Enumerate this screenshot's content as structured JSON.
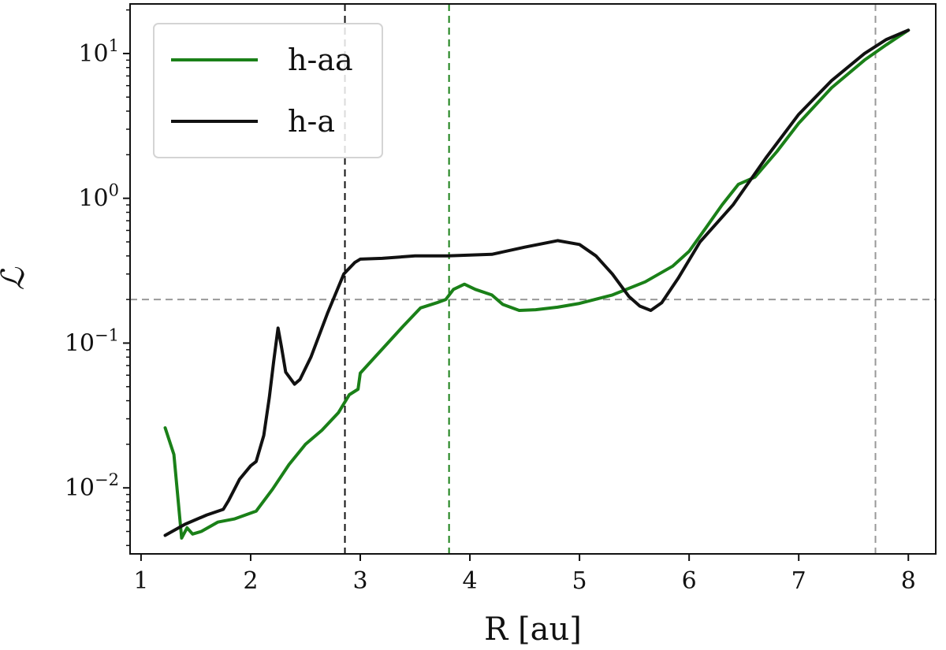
{
  "chart_data": {
    "type": "line",
    "title": "",
    "xlabel": "R [au]",
    "ylabel": "ℒ",
    "xlim": [
      0.9,
      8.25
    ],
    "ylim": [
      0.0035,
      22
    ],
    "yscale": "log",
    "grid": false,
    "legend_position": "top-left",
    "x_ticks": [
      1,
      2,
      3,
      4,
      5,
      6,
      7,
      8
    ],
    "x_tick_labels": [
      "1",
      "2",
      "3",
      "4",
      "5",
      "6",
      "7",
      "8"
    ],
    "y_ticks": [
      {
        "value": 0.01,
        "base": "10",
        "exp": "−2"
      },
      {
        "value": 0.1,
        "base": "10",
        "exp": "−1"
      },
      {
        "value": 1,
        "base": "10",
        "exp": "0"
      },
      {
        "value": 10,
        "base": "10",
        "exp": "1"
      }
    ],
    "series": [
      {
        "name": "h-aa",
        "color": "#1a8018",
        "points": [
          [
            1.22,
            0.026
          ],
          [
            1.3,
            0.017
          ],
          [
            1.37,
            0.0045
          ],
          [
            1.42,
            0.0053
          ],
          [
            1.47,
            0.0048
          ],
          [
            1.55,
            0.005
          ],
          [
            1.7,
            0.0058
          ],
          [
            1.85,
            0.0061
          ],
          [
            2.05,
            0.0069
          ],
          [
            2.2,
            0.0098
          ],
          [
            2.35,
            0.0145
          ],
          [
            2.5,
            0.02
          ],
          [
            2.65,
            0.025
          ],
          [
            2.8,
            0.033
          ],
          [
            2.9,
            0.044
          ],
          [
            2.98,
            0.048
          ],
          [
            3.0,
            0.062
          ],
          [
            3.1,
            0.075
          ],
          [
            3.25,
            0.1
          ],
          [
            3.4,
            0.133
          ],
          [
            3.55,
            0.175
          ],
          [
            3.7,
            0.19
          ],
          [
            3.78,
            0.2
          ],
          [
            3.85,
            0.235
          ],
          [
            3.95,
            0.255
          ],
          [
            4.05,
            0.235
          ],
          [
            4.2,
            0.215
          ],
          [
            4.3,
            0.185
          ],
          [
            4.45,
            0.168
          ],
          [
            4.6,
            0.17
          ],
          [
            4.8,
            0.177
          ],
          [
            5.0,
            0.188
          ],
          [
            5.3,
            0.215
          ],
          [
            5.6,
            0.265
          ],
          [
            5.85,
            0.34
          ],
          [
            6.0,
            0.43
          ],
          [
            6.15,
            0.62
          ],
          [
            6.3,
            0.9
          ],
          [
            6.45,
            1.25
          ],
          [
            6.6,
            1.4
          ],
          [
            6.8,
            2.1
          ],
          [
            7.0,
            3.3
          ],
          [
            7.3,
            5.8
          ],
          [
            7.6,
            9.0
          ],
          [
            7.8,
            11.5
          ],
          [
            8.0,
            14.5
          ]
        ]
      },
      {
        "name": "h-a",
        "color": "#111111",
        "points": [
          [
            1.22,
            0.0047
          ],
          [
            1.4,
            0.0056
          ],
          [
            1.6,
            0.0065
          ],
          [
            1.75,
            0.0071
          ],
          [
            1.8,
            0.0082
          ],
          [
            1.9,
            0.0115
          ],
          [
            2.0,
            0.0142
          ],
          [
            2.05,
            0.0152
          ],
          [
            2.12,
            0.023
          ],
          [
            2.17,
            0.042
          ],
          [
            2.21,
            0.075
          ],
          [
            2.25,
            0.127
          ],
          [
            2.28,
            0.095
          ],
          [
            2.32,
            0.063
          ],
          [
            2.4,
            0.052
          ],
          [
            2.45,
            0.056
          ],
          [
            2.55,
            0.08
          ],
          [
            2.7,
            0.16
          ],
          [
            2.85,
            0.3
          ],
          [
            2.95,
            0.36
          ],
          [
            3.0,
            0.38
          ],
          [
            3.2,
            0.385
          ],
          [
            3.5,
            0.4
          ],
          [
            3.8,
            0.4
          ],
          [
            4.2,
            0.41
          ],
          [
            4.5,
            0.46
          ],
          [
            4.8,
            0.51
          ],
          [
            5.0,
            0.48
          ],
          [
            5.15,
            0.4
          ],
          [
            5.3,
            0.3
          ],
          [
            5.45,
            0.21
          ],
          [
            5.55,
            0.18
          ],
          [
            5.65,
            0.168
          ],
          [
            5.75,
            0.19
          ],
          [
            5.9,
            0.28
          ],
          [
            6.1,
            0.5
          ],
          [
            6.4,
            0.9
          ],
          [
            6.7,
            1.9
          ],
          [
            7.0,
            3.8
          ],
          [
            7.3,
            6.5
          ],
          [
            7.6,
            10.0
          ],
          [
            7.8,
            12.5
          ],
          [
            8.0,
            14.5
          ]
        ]
      }
    ],
    "reference_lines": [
      {
        "orientation": "vertical",
        "value": 2.86,
        "color": "#111111"
      },
      {
        "orientation": "vertical",
        "value": 3.81,
        "color": "#1a8018"
      },
      {
        "orientation": "vertical",
        "value": 7.7,
        "color": "#999999"
      },
      {
        "orientation": "horizontal",
        "value": 0.2,
        "color": "#999999"
      }
    ]
  }
}
